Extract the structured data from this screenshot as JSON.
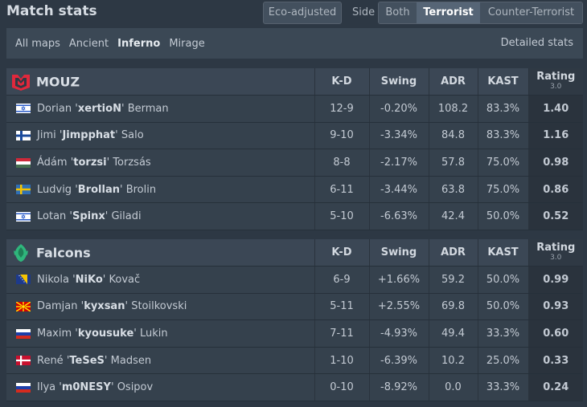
{
  "header": {
    "title": "Match stats",
    "eco_label": "Eco-adjusted",
    "side_label": "Side",
    "side_options": [
      "Both",
      "Terrorist",
      "Counter-Terrorist"
    ],
    "active_side": "Terrorist"
  },
  "maps": {
    "items": [
      "All maps",
      "Ancient",
      "Inferno",
      "Mirage"
    ],
    "active": "Inferno",
    "detailed_label": "Detailed stats"
  },
  "columns": {
    "kd": "K-D",
    "swing": "Swing",
    "adr": "ADR",
    "kast": "KAST",
    "rating": "Rating",
    "rating_version": "3.0"
  },
  "colors": {
    "positive": "#62c862",
    "negative": "#e05252",
    "rating_good": "#5fd35f",
    "rating_bad": "#ff4a4a",
    "mouz_red": "#e0283c",
    "falcons_green": "#2fb67c"
  },
  "teams": [
    {
      "name": "MOUZ",
      "logo": "mouz-logo",
      "players": [
        {
          "flag": "israel",
          "first": "Dorian",
          "nick": "xertioN",
          "last": "Berman",
          "kd": "12-9",
          "swing": "-0.20%",
          "adr": "108.2",
          "kast": "83.3%",
          "rating": "1.40"
        },
        {
          "flag": "finland",
          "first": "Jimi",
          "nick": "Jimpphat",
          "last": "Salo",
          "kd": "9-10",
          "swing": "-3.34%",
          "adr": "84.8",
          "kast": "83.3%",
          "rating": "1.16"
        },
        {
          "flag": "hungary",
          "first": "Ádám",
          "nick": "torzsi",
          "last": "Torzsás",
          "kd": "8-8",
          "swing": "-2.17%",
          "adr": "57.8",
          "kast": "75.0%",
          "rating": "0.98"
        },
        {
          "flag": "sweden",
          "first": "Ludvig",
          "nick": "Brollan",
          "last": "Brolin",
          "kd": "6-11",
          "swing": "-3.44%",
          "adr": "63.8",
          "kast": "75.0%",
          "rating": "0.86"
        },
        {
          "flag": "israel",
          "first": "Lotan",
          "nick": "Spinx",
          "last": "Giladi",
          "kd": "5-10",
          "swing": "-6.63%",
          "adr": "42.4",
          "kast": "50.0%",
          "rating": "0.52"
        }
      ]
    },
    {
      "name": "Falcons",
      "logo": "falcons-logo",
      "players": [
        {
          "flag": "bosnia",
          "first": "Nikola",
          "nick": "NiKo",
          "last": "Kovač",
          "kd": "6-9",
          "swing": "+1.66%",
          "adr": "59.2",
          "kast": "50.0%",
          "rating": "0.99"
        },
        {
          "flag": "north-macedonia",
          "first": "Damjan",
          "nick": "kyxsan",
          "last": "Stoilkovski",
          "kd": "5-11",
          "swing": "+2.55%",
          "adr": "69.8",
          "kast": "50.0%",
          "rating": "0.93"
        },
        {
          "flag": "russia",
          "first": "Maxim",
          "nick": "kyousuke",
          "last": "Lukin",
          "kd": "7-11",
          "swing": "-4.93%",
          "adr": "49.4",
          "kast": "33.3%",
          "rating": "0.60"
        },
        {
          "flag": "denmark",
          "first": "René",
          "nick": "TeSeS",
          "last": "Madsen",
          "kd": "1-10",
          "swing": "-6.39%",
          "adr": "10.2",
          "kast": "25.0%",
          "rating": "0.33"
        },
        {
          "flag": "russia",
          "first": "Ilya",
          "nick": "m0NESY",
          "last": "Osipov",
          "kd": "0-10",
          "swing": "-8.92%",
          "adr": "0.0",
          "kast": "33.3%",
          "rating": "0.24"
        }
      ]
    }
  ]
}
